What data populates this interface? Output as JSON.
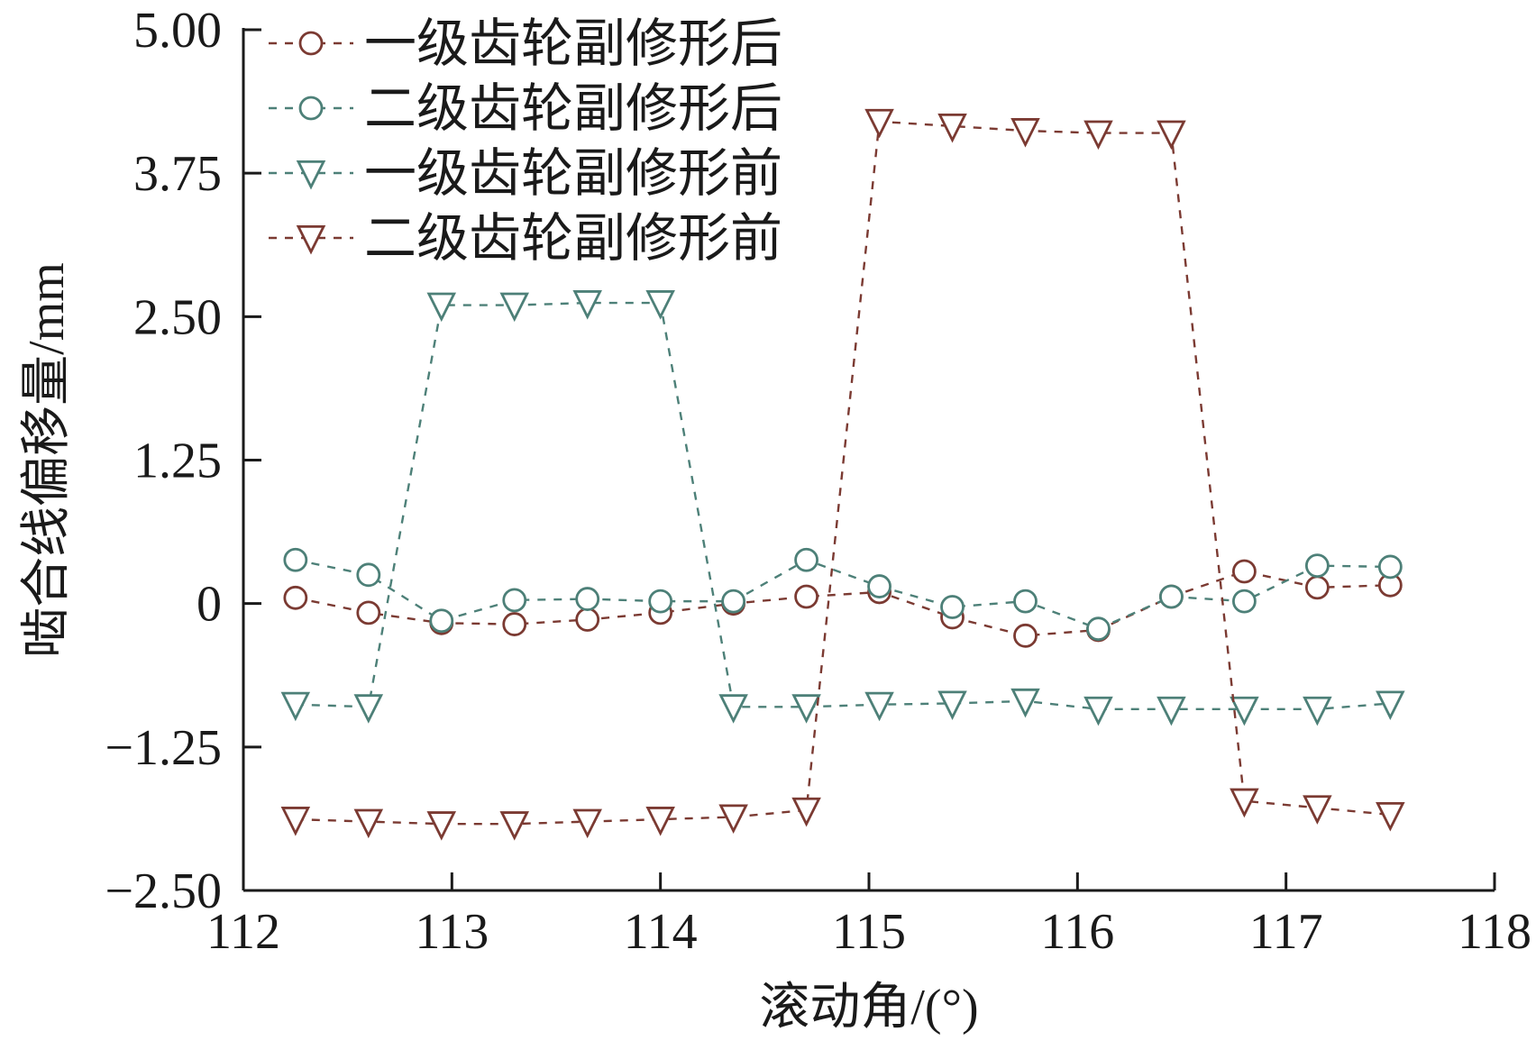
{
  "chart_data": {
    "type": "line",
    "xlabel": "滚动角/(°)",
    "ylabel": "啮合线偏移量/mm",
    "xlim": [
      112,
      118
    ],
    "ylim": [
      -2.5,
      5.0
    ],
    "xticks": [
      112,
      113,
      114,
      115,
      116,
      117,
      118
    ],
    "xtick_labels": [
      "112",
      "113",
      "114",
      "115",
      "116",
      "117",
      "118"
    ],
    "yticks": [
      -2.5,
      -1.25,
      0,
      1.25,
      2.5,
      3.75,
      5.0
    ],
    "ytick_labels": [
      "−2.50",
      "−1.25",
      "0",
      "1.25",
      "2.50",
      "3.75",
      "5.00"
    ],
    "grid": false,
    "legend_position": "top-left",
    "colors": {
      "dark_red": "#7b3a32",
      "teal": "#4d8078",
      "axis": "#1a1a1a"
    },
    "x": [
      112.25,
      112.6,
      112.95,
      113.3,
      113.65,
      114.0,
      114.35,
      114.7,
      115.05,
      115.4,
      115.75,
      116.1,
      116.45,
      116.8,
      117.15,
      117.5
    ],
    "series": [
      {
        "name": "一级齿轮副修形后",
        "color": "#7b3a32",
        "marker": "circle",
        "values": [
          0.05,
          -0.08,
          -0.17,
          -0.18,
          -0.14,
          -0.08,
          0.0,
          0.06,
          0.1,
          -0.12,
          -0.28,
          -0.23,
          0.06,
          0.28,
          0.14,
          0.16
        ]
      },
      {
        "name": "二级齿轮副修形后",
        "color": "#4d8078",
        "marker": "circle",
        "values": [
          0.38,
          0.25,
          -0.15,
          0.03,
          0.04,
          0.02,
          0.02,
          0.38,
          0.15,
          -0.03,
          0.02,
          -0.22,
          0.06,
          0.02,
          0.33,
          0.32
        ]
      },
      {
        "name": "一级齿轮副修形前",
        "color": "#4d8078",
        "marker": "triangle-down",
        "values": [
          -0.88,
          -0.9,
          2.6,
          2.6,
          2.62,
          2.62,
          -0.9,
          -0.9,
          -0.88,
          -0.87,
          -0.85,
          -0.92,
          -0.92,
          -0.92,
          -0.92,
          -0.87
        ]
      },
      {
        "name": "二级齿轮副修形前",
        "color": "#7b3a32",
        "marker": "triangle-down",
        "values": [
          -1.88,
          -1.9,
          -1.92,
          -1.92,
          -1.9,
          -1.88,
          -1.86,
          -1.8,
          4.2,
          4.16,
          4.12,
          4.1,
          4.1,
          -1.72,
          -1.78,
          -1.84
        ]
      }
    ]
  }
}
